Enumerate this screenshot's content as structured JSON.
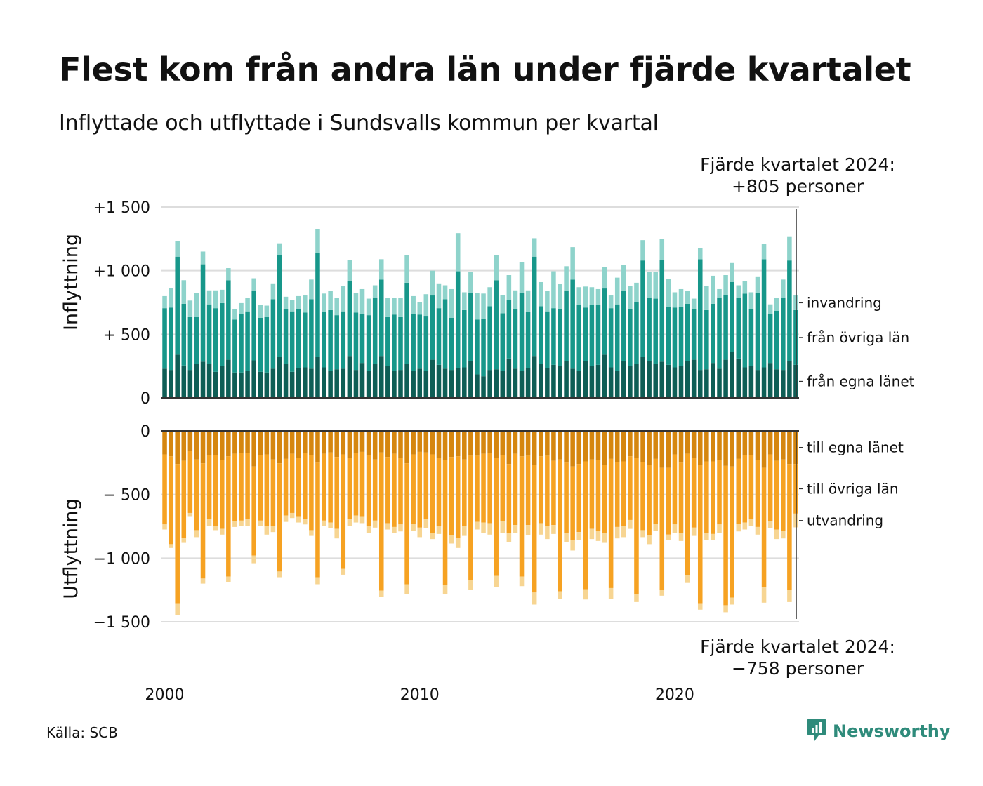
{
  "title": "Flest kom från andra län under fjärde kvartalet",
  "subtitle": "Inflyttade och utflyttade i Sundsvalls kommun per kvartal",
  "callouts": {
    "top": [
      "Fjärde kvartalet 2024:",
      "+805 personer"
    ],
    "bottom": [
      "Fjärde kvartalet 2024:",
      "−758 personer"
    ]
  },
  "source": "Källa: SCB",
  "brand": "Newsworthy",
  "colors": {
    "in_own": "#0e5e56",
    "in_other": "#17978a",
    "in_immig": "#8ed3cb",
    "out_own": "#d5860f",
    "out_other": "#f6a222",
    "out_emig": "#f7d592",
    "grid": "#dddddd",
    "brand": "#2f8b7b"
  },
  "chart_data": [
    {
      "type": "bar",
      "stacked": true,
      "ylabel": "Inflyttning",
      "ylim": [
        0,
        1500
      ],
      "yticks": [
        0,
        500,
        1000,
        1500
      ],
      "ytick_labels": [
        "0",
        "+  500",
        "+1 000",
        "+1 500"
      ],
      "xticks": [
        "2000",
        "2010",
        "2020"
      ],
      "period": "2000 Q1 – 2024 Q4 (kvartal)",
      "series": [
        {
          "name": "från egna länet",
          "values": [
            230,
            220,
            340,
            255,
            220,
            270,
            285,
            270,
            205,
            250,
            300,
            200,
            200,
            210,
            295,
            205,
            200,
            230,
            320,
            270,
            205,
            235,
            240,
            230,
            320,
            240,
            215,
            225,
            230,
            330,
            220,
            275,
            210,
            270,
            330,
            250,
            215,
            220,
            270,
            210,
            230,
            210,
            300,
            260,
            230,
            220,
            235,
            240,
            290,
            185,
            170,
            220,
            225,
            215,
            310,
            230,
            215,
            235,
            330,
            270,
            235,
            260,
            250,
            290,
            230,
            215,
            290,
            250,
            260,
            340,
            240,
            210,
            290,
            250,
            270,
            320,
            290,
            270,
            285,
            260,
            240,
            250,
            290,
            300,
            220,
            225,
            275,
            230,
            300,
            360,
            310,
            240,
            250,
            220,
            240,
            275,
            225,
            220,
            290,
            260
          ]
        },
        {
          "name": "från övriga län",
          "values": [
            475,
            490,
            770,
            485,
            420,
            365,
            765,
            465,
            500,
            495,
            625,
            415,
            460,
            470,
            550,
            425,
            435,
            545,
            805,
            425,
            475,
            465,
            430,
            545,
            820,
            435,
            475,
            425,
            450,
            590,
            450,
            385,
            440,
            520,
            600,
            390,
            440,
            420,
            635,
            450,
            425,
            435,
            505,
            445,
            545,
            410,
            760,
            450,
            535,
            430,
            450,
            500,
            700,
            450,
            460,
            470,
            610,
            440,
            780,
            450,
            445,
            445,
            450,
            555,
            700,
            515,
            420,
            480,
            470,
            520,
            465,
            525,
            555,
            450,
            485,
            760,
            500,
            510,
            800,
            455,
            470,
            465,
            450,
            395,
            870,
            465,
            465,
            560,
            510,
            550,
            480,
            580,
            450,
            605,
            850,
            385,
            460,
            570,
            790,
            430
          ]
        },
        {
          "name": "invandring",
          "values": [
            95,
            155,
            120,
            185,
            125,
            190,
            100,
            110,
            140,
            105,
            95,
            80,
            85,
            105,
            95,
            100,
            90,
            125,
            90,
            100,
            90,
            100,
            135,
            155,
            185,
            145,
            150,
            135,
            200,
            165,
            155,
            195,
            130,
            95,
            160,
            145,
            130,
            145,
            220,
            140,
            100,
            170,
            195,
            195,
            110,
            225,
            300,
            140,
            165,
            210,
            200,
            150,
            195,
            145,
            195,
            145,
            240,
            170,
            145,
            190,
            160,
            290,
            195,
            190,
            255,
            140,
            165,
            140,
            125,
            170,
            100,
            210,
            200,
            180,
            150,
            160,
            200,
            210,
            165,
            220,
            120,
            140,
            100,
            85,
            85,
            190,
            220,
            65,
            155,
            150,
            95,
            100,
            130,
            130,
            120,
            75,
            100,
            140,
            190,
            115
          ]
        }
      ]
    },
    {
      "type": "bar",
      "stacked": true,
      "ylabel": "Utflyttning",
      "ylim": [
        -1500,
        0
      ],
      "yticks": [
        0,
        -500,
        -1000,
        -1500
      ],
      "ytick_labels": [
        "0",
        "−  500",
        "−1 000",
        "−1 500"
      ],
      "series": [
        {
          "name": "till egna länet",
          "values": [
            -185,
            -200,
            -260,
            -235,
            -160,
            -225,
            -255,
            -190,
            -190,
            -230,
            -200,
            -180,
            -175,
            -175,
            -280,
            -190,
            -185,
            -225,
            -255,
            -220,
            -180,
            -210,
            -175,
            -190,
            -250,
            -180,
            -170,
            -205,
            -185,
            -210,
            -175,
            -165,
            -190,
            -225,
            -170,
            -205,
            -180,
            -215,
            -255,
            -185,
            -165,
            -170,
            -185,
            -210,
            -230,
            -205,
            -200,
            -225,
            -195,
            -195,
            -180,
            -175,
            -210,
            -190,
            -260,
            -180,
            -200,
            -195,
            -270,
            -200,
            -195,
            -235,
            -225,
            -250,
            -280,
            -260,
            -240,
            -225,
            -230,
            -270,
            -220,
            -245,
            -240,
            -200,
            -215,
            -245,
            -270,
            -220,
            -290,
            -290,
            -185,
            -250,
            -180,
            -210,
            -265,
            -240,
            -240,
            -230,
            -275,
            -280,
            -220,
            -190,
            -190,
            -230,
            -290,
            -185,
            -235,
            -225,
            -260,
            -260
          ]
        },
        {
          "name": "till övriga län",
          "values": [
            -550,
            -690,
            -1095,
            -610,
            -485,
            -555,
            -905,
            -500,
            -560,
            -540,
            -945,
            -530,
            -530,
            -515,
            -700,
            -515,
            -565,
            -525,
            -850,
            -445,
            -465,
            -460,
            -515,
            -590,
            -900,
            -525,
            -550,
            -565,
            -900,
            -485,
            -490,
            -505,
            -560,
            -480,
            -1085,
            -520,
            -575,
            -520,
            -950,
            -545,
            -595,
            -525,
            -615,
            -535,
            -980,
            -615,
            -645,
            -525,
            -975,
            -520,
            -540,
            -550,
            -930,
            -520,
            -545,
            -560,
            -945,
            -545,
            -1000,
            -525,
            -555,
            -505,
            -1035,
            -550,
            -580,
            -535,
            -1005,
            -545,
            -555,
            -535,
            -1015,
            -510,
            -510,
            -500,
            -1070,
            -535,
            -550,
            -510,
            -960,
            -525,
            -550,
            -550,
            -955,
            -550,
            -1090,
            -560,
            -570,
            -505,
            -1095,
            -1030,
            -510,
            -530,
            -500,
            -525,
            -940,
            -525,
            -540,
            -560,
            -990,
            -390
          ]
        },
        {
          "name": "utvandring",
          "values": [
            -40,
            -30,
            -90,
            -35,
            -25,
            -55,
            -40,
            -60,
            -30,
            -45,
            -45,
            -45,
            -45,
            -55,
            -60,
            -40,
            -65,
            -45,
            -45,
            -50,
            -40,
            -50,
            -45,
            -45,
            -55,
            -45,
            -45,
            -75,
            -45,
            -50,
            -55,
            -55,
            -50,
            -55,
            -50,
            -50,
            -50,
            -55,
            -75,
            -55,
            -75,
            -70,
            -50,
            -65,
            -75,
            -65,
            -75,
            -75,
            -80,
            -60,
            -80,
            -90,
            -85,
            -90,
            -70,
            -60,
            -75,
            -80,
            -95,
            -90,
            -100,
            -70,
            -60,
            -75,
            -80,
            -60,
            -80,
            -80,
            -80,
            -75,
            -85,
            -90,
            -85,
            -70,
            -60,
            -55,
            -70,
            -55,
            -45,
            -45,
            -70,
            -65,
            -60,
            -65,
            -50,
            -55,
            -45,
            -65,
            -55,
            -55,
            -60,
            -55,
            -55,
            -60,
            -120,
            -55,
            -75,
            -60,
            -95,
            -108
          ]
        }
      ]
    }
  ]
}
